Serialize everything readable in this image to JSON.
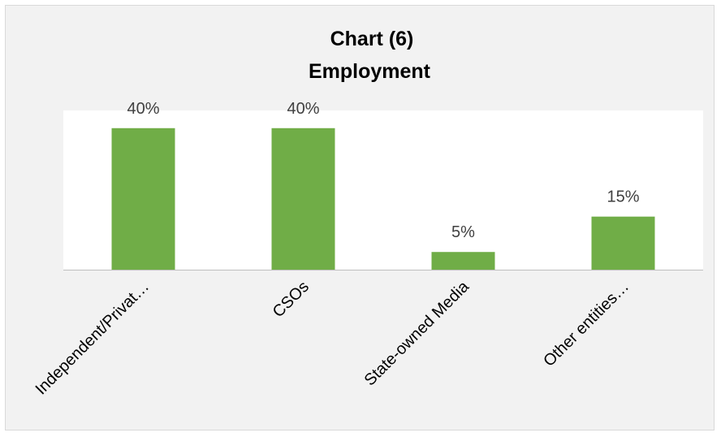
{
  "chart_data": {
    "type": "bar",
    "title": "Chart (6)",
    "subtitle": "Employment",
    "categories": [
      "Independent/Privat…",
      "CSOs",
      "State-owned Media",
      "Other entities…"
    ],
    "values": [
      40,
      40,
      5,
      15
    ],
    "value_labels": [
      "40%",
      "40%",
      "5%",
      "15%"
    ],
    "ylim": [
      0,
      45
    ],
    "grid": false,
    "legend": "none",
    "bar_color": "#70AD47",
    "plot_area_color": "#FFFFFF",
    "outer_background_color": "#F2F2F2",
    "axis_color": "#BFBFBF"
  }
}
